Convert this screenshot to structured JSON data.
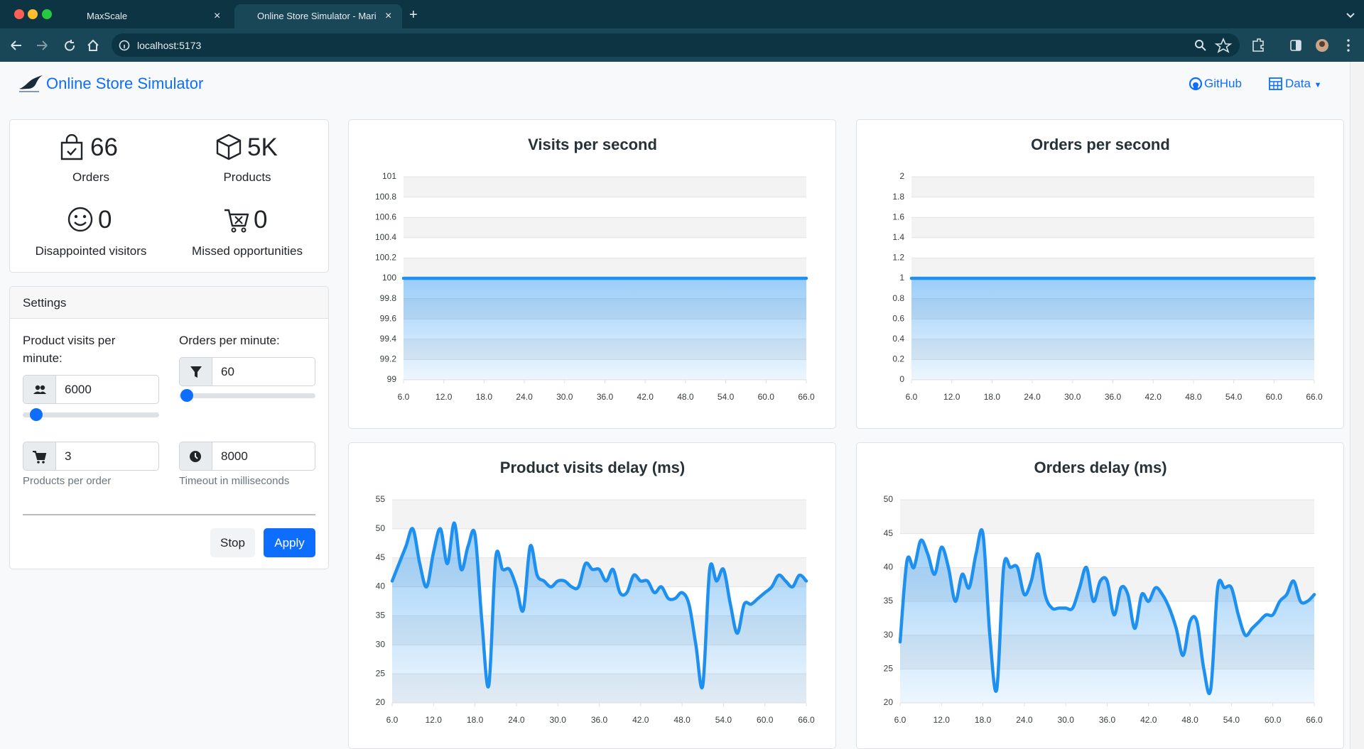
{
  "browser": {
    "tabs": [
      {
        "title": "MaxScale"
      },
      {
        "title": "Online Store Simulator - Mari"
      }
    ],
    "url": "localhost:5173"
  },
  "navbar": {
    "brand": "Online Store Simulator",
    "links": [
      "GitHub",
      "Data"
    ]
  },
  "stats": [
    {
      "value": 66,
      "label": "Orders"
    },
    {
      "value": "5K",
      "label": "Products"
    },
    {
      "value": 0,
      "label": "Disappointed visitors"
    },
    {
      "value": 0,
      "label": "Missed opportunities"
    }
  ],
  "settings": {
    "title": "Settings",
    "fields": [
      {
        "label": "Product visits per minute:",
        "value": 6000
      },
      {
        "label": "Orders per minute:",
        "value": 60
      },
      {
        "value": 3,
        "help": "Products per order"
      },
      {
        "value": 8000,
        "help": "Timeout in milliseconds"
      }
    ],
    "buttons": [
      "Stop",
      "Apply"
    ]
  },
  "chart_data": [
    {
      "type": "area",
      "title": "Visits per second",
      "color": "#1e90f0",
      "grid": true,
      "x": [
        6,
        7,
        8,
        9,
        10,
        11,
        12,
        13,
        14,
        15,
        16,
        17,
        18,
        19,
        20,
        21,
        22,
        23,
        24,
        25,
        26,
        27,
        28,
        29,
        30,
        31,
        32,
        33,
        34,
        35,
        36,
        37,
        38,
        39,
        40,
        41,
        42,
        43,
        44,
        45,
        46,
        47,
        48,
        49,
        50,
        51,
        52,
        53,
        54,
        55,
        56,
        57,
        58,
        59,
        60,
        61,
        62,
        63,
        64,
        65,
        66
      ],
      "values": [
        100,
        100,
        100,
        100,
        100,
        100,
        100,
        100,
        100,
        100,
        100,
        100,
        100,
        100,
        100,
        100,
        100,
        100,
        100,
        100,
        100,
        100,
        100,
        100,
        100,
        100,
        100,
        100,
        100,
        100,
        100,
        100,
        100,
        100,
        100,
        100,
        100,
        100,
        100,
        100,
        100,
        100,
        100,
        100,
        100,
        100,
        100,
        100,
        100,
        100,
        100,
        100,
        100,
        100,
        100,
        100,
        100,
        100,
        100,
        100,
        100
      ],
      "xlim": [
        6,
        66
      ],
      "xticks": [
        {
          "value": 6,
          "label": "6.0"
        },
        {
          "value": 12,
          "label": "12.0"
        },
        {
          "value": 18,
          "label": "18.0"
        },
        {
          "value": 24,
          "label": "24.0"
        },
        {
          "value": 30,
          "label": "30.0"
        },
        {
          "value": 36,
          "label": "36.0"
        },
        {
          "value": 42,
          "label": "42.0"
        },
        {
          "value": 48,
          "label": "48.0"
        },
        {
          "value": 54,
          "label": "54.0"
        },
        {
          "value": 60,
          "label": "60.0"
        },
        {
          "value": 66,
          "label": "66.0"
        }
      ],
      "ylim": [
        99,
        101
      ],
      "yticks": [
        99,
        99.2,
        99.4,
        99.6,
        99.8,
        100,
        100.2,
        100.4,
        100.6,
        100.8,
        101
      ]
    },
    {
      "type": "area",
      "title": "Orders per second",
      "color": "#1e90f0",
      "grid": true,
      "x": [
        6,
        7,
        8,
        9,
        10,
        11,
        12,
        13,
        14,
        15,
        16,
        17,
        18,
        19,
        20,
        21,
        22,
        23,
        24,
        25,
        26,
        27,
        28,
        29,
        30,
        31,
        32,
        33,
        34,
        35,
        36,
        37,
        38,
        39,
        40,
        41,
        42,
        43,
        44,
        45,
        46,
        47,
        48,
        49,
        50,
        51,
        52,
        53,
        54,
        55,
        56,
        57,
        58,
        59,
        60,
        61,
        62,
        63,
        64,
        65,
        66
      ],
      "values": [
        1,
        1,
        1,
        1,
        1,
        1,
        1,
        1,
        1,
        1,
        1,
        1,
        1,
        1,
        1,
        1,
        1,
        1,
        1,
        1,
        1,
        1,
        1,
        1,
        1,
        1,
        1,
        1,
        1,
        1,
        1,
        1,
        1,
        1,
        1,
        1,
        1,
        1,
        1,
        1,
        1,
        1,
        1,
        1,
        1,
        1,
        1,
        1,
        1,
        1,
        1,
        1,
        1,
        1,
        1,
        1,
        1,
        1,
        1,
        1,
        1
      ],
      "xlim": [
        6,
        66
      ],
      "xticks": [
        {
          "value": 6,
          "label": "6.0"
        },
        {
          "value": 12,
          "label": "12.0"
        },
        {
          "value": 18,
          "label": "18.0"
        },
        {
          "value": 24,
          "label": "24.0"
        },
        {
          "value": 30,
          "label": "30.0"
        },
        {
          "value": 36,
          "label": "36.0"
        },
        {
          "value": 42,
          "label": "42.0"
        },
        {
          "value": 48,
          "label": "48.0"
        },
        {
          "value": 54,
          "label": "54.0"
        },
        {
          "value": 60,
          "label": "60.0"
        },
        {
          "value": 66,
          "label": "66.0"
        }
      ],
      "ylim": [
        0,
        2
      ],
      "yticks": [
        0,
        0.2,
        0.4,
        0.6,
        0.8,
        1,
        1.2,
        1.4,
        1.6,
        1.8,
        2
      ]
    },
    {
      "type": "area",
      "title": "Product visits delay (ms)",
      "color": "#1e90f0",
      "grid": true,
      "x": [
        6,
        7,
        8,
        9,
        10,
        11,
        12,
        13,
        14,
        15,
        16,
        17,
        18,
        19,
        20,
        21,
        22,
        23,
        24,
        25,
        26,
        27,
        28,
        29,
        30,
        31,
        32,
        33,
        34,
        35,
        36,
        37,
        38,
        39,
        40,
        41,
        42,
        43,
        44,
        45,
        46,
        47,
        48,
        49,
        50,
        51,
        52,
        53,
        54,
        55,
        56,
        57,
        58,
        59,
        60,
        61,
        62,
        63,
        64,
        65,
        66
      ],
      "values": [
        41,
        44,
        47,
        50,
        44,
        40,
        46,
        50,
        44,
        51,
        43,
        47,
        49,
        34,
        23,
        45,
        43,
        43,
        40,
        36,
        47,
        42,
        41,
        40,
        41,
        41,
        40,
        40,
        44,
        43,
        43,
        41,
        43,
        39,
        39,
        42,
        41,
        41,
        39,
        40,
        38,
        38,
        39,
        37,
        30,
        23,
        43,
        41,
        43,
        37,
        32,
        37,
        37,
        38,
        39,
        40,
        42,
        41,
        40,
        42,
        41
      ],
      "xlim": [
        6,
        66
      ],
      "xticks": [
        {
          "value": 6,
          "label": "6.0"
        },
        {
          "value": 12,
          "label": "12.0"
        },
        {
          "value": 18,
          "label": "18.0"
        },
        {
          "value": 24,
          "label": "24.0"
        },
        {
          "value": 30,
          "label": "30.0"
        },
        {
          "value": 36,
          "label": "36.0"
        },
        {
          "value": 42,
          "label": "42.0"
        },
        {
          "value": 48,
          "label": "48.0"
        },
        {
          "value": 54,
          "label": "54.0"
        },
        {
          "value": 60,
          "label": "60.0"
        },
        {
          "value": 66,
          "label": "66.0"
        }
      ],
      "ylim": [
        20,
        55
      ],
      "yticks": [
        20,
        25,
        30,
        35,
        40,
        45,
        50,
        55
      ]
    },
    {
      "type": "area",
      "title": "Orders delay (ms)",
      "color": "#1e90f0",
      "grid": true,
      "x": [
        6,
        7,
        8,
        9,
        10,
        11,
        12,
        13,
        14,
        15,
        16,
        17,
        18,
        19,
        20,
        21,
        22,
        23,
        24,
        25,
        26,
        27,
        28,
        29,
        30,
        31,
        32,
        33,
        34,
        35,
        36,
        37,
        38,
        39,
        40,
        41,
        42,
        43,
        44,
        45,
        46,
        47,
        48,
        49,
        50,
        51,
        52,
        53,
        54,
        55,
        56,
        57,
        58,
        59,
        60,
        61,
        62,
        63,
        64,
        65,
        66
      ],
      "values": [
        29,
        41,
        40,
        44,
        42,
        39,
        43,
        40,
        35,
        39,
        37,
        42,
        45,
        30,
        22,
        40,
        40,
        40,
        36,
        38,
        42,
        36,
        34,
        34,
        34,
        34,
        37,
        40,
        35,
        38,
        38,
        33,
        37,
        36,
        31,
        36,
        35,
        37,
        36,
        34,
        31,
        27,
        32,
        32,
        25,
        22,
        37,
        37,
        37,
        33,
        30,
        31,
        32,
        33,
        33,
        35,
        36,
        38,
        35,
        35,
        36
      ],
      "xlim": [
        6,
        66
      ],
      "xticks": [
        {
          "value": 6,
          "label": "6.0"
        },
        {
          "value": 12,
          "label": "12.0"
        },
        {
          "value": 18,
          "label": "18.0"
        },
        {
          "value": 24,
          "label": "24.0"
        },
        {
          "value": 30,
          "label": "30.0"
        },
        {
          "value": 36,
          "label": "36.0"
        },
        {
          "value": 42,
          "label": "42.0"
        },
        {
          "value": 48,
          "label": "48.0"
        },
        {
          "value": 54,
          "label": "54.0"
        },
        {
          "value": 60,
          "label": "60.0"
        },
        {
          "value": 66,
          "label": "66.0"
        }
      ],
      "ylim": [
        20,
        50
      ],
      "yticks": [
        20,
        25,
        30,
        35,
        40,
        45,
        50
      ]
    }
  ]
}
